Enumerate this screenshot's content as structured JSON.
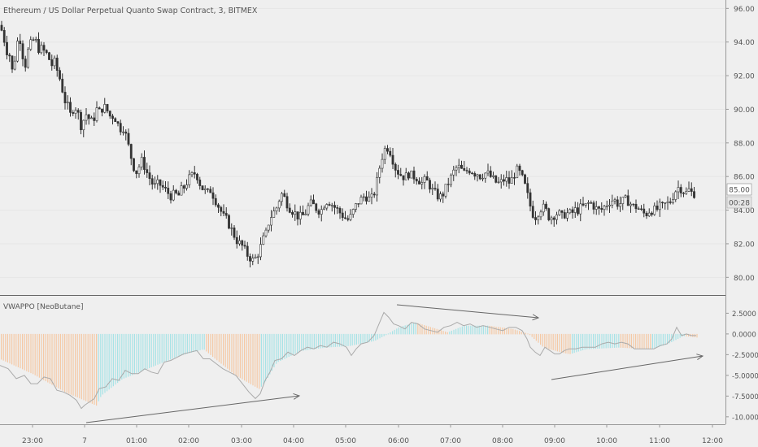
{
  "chart_data": [
    {
      "type": "candlestick",
      "title": "Ethereum / US Dollar Perpetual Quanto Swap Contract, 3, BITMEX",
      "y_ticks": [
        "80.00",
        "82.00",
        "84.00",
        "86.00",
        "88.00",
        "90.00",
        "92.00",
        "94.00",
        "96.00"
      ],
      "ylim": [
        79,
        96.5
      ],
      "last_price": "85.00",
      "countdown": "00:28",
      "x_ticks": [
        "23:00",
        "7",
        "01:00",
        "02:00",
        "03:00",
        "04:00",
        "05:00",
        "06:00",
        "07:00",
        "08:00",
        "09:00",
        "10:00",
        "11:00",
        "12:00"
      ],
      "price_path": [
        [
          0,
          95.0
        ],
        [
          4,
          94.4
        ],
        [
          8,
          93.5
        ],
        [
          12,
          93.2
        ],
        [
          16,
          92.0
        ],
        [
          20,
          93.8
        ],
        [
          24,
          94.4
        ],
        [
          27,
          93.4
        ],
        [
          31,
          92.6
        ],
        [
          35,
          93.6
        ],
        [
          39,
          94.0
        ],
        [
          43,
          94.2
        ],
        [
          47,
          93.6
        ],
        [
          51,
          93.6
        ],
        [
          55,
          93.4
        ],
        [
          59,
          93.2
        ],
        [
          63,
          92.6
        ],
        [
          67,
          92.8
        ],
        [
          71,
          92.2
        ],
        [
          75,
          91.6
        ],
        [
          79,
          90.6
        ],
        [
          83,
          90.2
        ],
        [
          87,
          89.6
        ],
        [
          91,
          90.2
        ],
        [
          95,
          90.0
        ],
        [
          99,
          89.0
        ],
        [
          103,
          89.4
        ],
        [
          107,
          89.8
        ],
        [
          111,
          89.2
        ],
        [
          115,
          89.4
        ],
        [
          119,
          90.0
        ],
        [
          123,
          89.8
        ],
        [
          127,
          90.2
        ],
        [
          131,
          90.0
        ],
        [
          135,
          89.6
        ],
        [
          139,
          89.6
        ],
        [
          143,
          89.4
        ],
        [
          147,
          88.8
        ],
        [
          151,
          89.0
        ],
        [
          155,
          88.4
        ],
        [
          159,
          87.6
        ],
        [
          163,
          86.8
        ],
        [
          167,
          86.2
        ],
        [
          171,
          86.6
        ],
        [
          175,
          87.0
        ],
        [
          179,
          86.4
        ],
        [
          183,
          86.0
        ],
        [
          187,
          85.6
        ],
        [
          191,
          85.4
        ],
        [
          195,
          85.6
        ],
        [
          199,
          85.4
        ],
        [
          203,
          85.2
        ],
        [
          207,
          85.0
        ],
        [
          211,
          84.8
        ],
        [
          215,
          85.0
        ],
        [
          219,
          84.8
        ],
        [
          223,
          85.2
        ],
        [
          227,
          85.4
        ],
        [
          231,
          85.8
        ],
        [
          235,
          86.0
        ],
        [
          239,
          86.2
        ],
        [
          243,
          86.0
        ],
        [
          247,
          85.4
        ],
        [
          251,
          85.2
        ],
        [
          255,
          85.0
        ],
        [
          259,
          85.2
        ],
        [
          263,
          84.8
        ],
        [
          267,
          84.4
        ],
        [
          271,
          84.0
        ],
        [
          275,
          83.6
        ],
        [
          279,
          83.4
        ],
        [
          283,
          83.0
        ],
        [
          287,
          82.6
        ],
        [
          291,
          82.2
        ],
        [
          295,
          82.0
        ],
        [
          299,
          81.8
        ],
        [
          303,
          81.4
        ],
        [
          307,
          81.2
        ],
        [
          311,
          81.0
        ],
        [
          315,
          81.2
        ],
        [
          319,
          81.6
        ],
        [
          323,
          82.2
        ],
        [
          327,
          82.6
        ],
        [
          331,
          83.4
        ],
        [
          335,
          83.8
        ],
        [
          339,
          84.0
        ],
        [
          343,
          84.6
        ],
        [
          347,
          85.0
        ],
        [
          351,
          84.6
        ],
        [
          355,
          84.2
        ],
        [
          359,
          84.0
        ],
        [
          363,
          83.8
        ],
        [
          367,
          83.6
        ],
        [
          371,
          83.6
        ],
        [
          375,
          83.8
        ],
        [
          379,
          84.2
        ],
        [
          383,
          84.4
        ],
        [
          387,
          84.2
        ],
        [
          391,
          84.0
        ],
        [
          395,
          84.0
        ],
        [
          399,
          84.4
        ],
        [
          403,
          84.6
        ],
        [
          407,
          84.4
        ],
        [
          411,
          84.2
        ],
        [
          415,
          84.0
        ],
        [
          419,
          83.8
        ],
        [
          423,
          83.6
        ],
        [
          427,
          83.4
        ],
        [
          431,
          83.6
        ],
        [
          435,
          84.0
        ],
        [
          439,
          84.4
        ],
        [
          443,
          84.6
        ],
        [
          447,
          84.8
        ],
        [
          451,
          84.8
        ],
        [
          455,
          84.6
        ],
        [
          459,
          84.8
        ],
        [
          463,
          85.6
        ],
        [
          467,
          86.6
        ],
        [
          471,
          87.4
        ],
        [
          475,
          87.8
        ],
        [
          479,
          87.6
        ],
        [
          483,
          87.0
        ],
        [
          487,
          86.4
        ],
        [
          491,
          86.2
        ],
        [
          495,
          86.0
        ],
        [
          499,
          86.0
        ],
        [
          503,
          86.2
        ],
        [
          507,
          86.0
        ],
        [
          511,
          86.0
        ],
        [
          515,
          85.8
        ],
        [
          519,
          85.6
        ],
        [
          523,
          85.8
        ],
        [
          527,
          85.6
        ],
        [
          531,
          85.2
        ],
        [
          535,
          85.0
        ],
        [
          539,
          84.8
        ],
        [
          543,
          84.8
        ],
        [
          547,
          85.2
        ],
        [
          551,
          85.6
        ],
        [
          555,
          86.0
        ],
        [
          559,
          86.4
        ],
        [
          563,
          86.6
        ],
        [
          567,
          86.4
        ],
        [
          571,
          86.2
        ],
        [
          575,
          86.4
        ],
        [
          579,
          86.4
        ],
        [
          583,
          86.2
        ],
        [
          587,
          86.2
        ],
        [
          591,
          86.0
        ],
        [
          595,
          86.2
        ],
        [
          599,
          86.2
        ],
        [
          603,
          86.0
        ],
        [
          607,
          85.8
        ],
        [
          611,
          85.6
        ],
        [
          615,
          85.6
        ],
        [
          619,
          85.8
        ],
        [
          623,
          85.8
        ],
        [
          627,
          85.6
        ],
        [
          631,
          86.0
        ],
        [
          635,
          86.4
        ],
        [
          639,
          86.2
        ],
        [
          643,
          85.8
        ],
        [
          647,
          85.2
        ],
        [
          651,
          84.4
        ],
        [
          655,
          83.8
        ],
        [
          659,
          83.6
        ],
        [
          663,
          84.0
        ],
        [
          667,
          84.2
        ],
        [
          671,
          84.0
        ],
        [
          675,
          83.6
        ],
        [
          679,
          83.6
        ],
        [
          683,
          83.8
        ],
        [
          687,
          83.8
        ],
        [
          691,
          83.6
        ],
        [
          695,
          83.8
        ],
        [
          699,
          83.8
        ],
        [
          703,
          83.8
        ],
        [
          707,
          84.0
        ],
        [
          711,
          84.0
        ],
        [
          715,
          84.2
        ],
        [
          719,
          84.2
        ],
        [
          723,
          84.4
        ],
        [
          727,
          84.4
        ],
        [
          731,
          84.2
        ],
        [
          735,
          84.0
        ],
        [
          739,
          84.0
        ],
        [
          743,
          84.2
        ],
        [
          747,
          84.4
        ],
        [
          751,
          84.6
        ],
        [
          755,
          84.6
        ],
        [
          759,
          84.4
        ],
        [
          763,
          84.4
        ],
        [
          767,
          84.6
        ],
        [
          771,
          84.6
        ],
        [
          775,
          84.4
        ],
        [
          779,
          84.2
        ],
        [
          783,
          84.2
        ],
        [
          787,
          84.0
        ],
        [
          791,
          83.8
        ],
        [
          795,
          83.8
        ],
        [
          799,
          84.0
        ],
        [
          803,
          84.0
        ],
        [
          807,
          84.0
        ],
        [
          811,
          84.2
        ],
        [
          815,
          84.2
        ],
        [
          819,
          84.4
        ],
        [
          823,
          84.4
        ],
        [
          827,
          84.8
        ],
        [
          831,
          85.2
        ],
        [
          835,
          85.4
        ],
        [
          839,
          85.2
        ],
        [
          843,
          85.0
        ],
        [
          847,
          85.2
        ],
        [
          851,
          85.0
        ],
        [
          855,
          85.0
        ]
      ]
    },
    {
      "type": "histogram",
      "title": "VWAPPO [NeoButane]",
      "y_ticks": [
        "2.5000",
        "0.0000",
        "-2.5000",
        "-5.0000",
        "-7.5000",
        "-10.0000"
      ],
      "ylim": [
        -10.8,
        4.5
      ],
      "colors": {
        "negative_falling": "#f5c9a5",
        "negative_rising": "#a8e3e6",
        "positive": "#f5c9a5"
      },
      "oscillator_path": [
        [
          0,
          -3.8
        ],
        [
          10,
          -4.2
        ],
        [
          20,
          -5.4
        ],
        [
          30,
          -5.0
        ],
        [
          38,
          -6.0
        ],
        [
          46,
          -6.0
        ],
        [
          54,
          -5.2
        ],
        [
          62,
          -5.4
        ],
        [
          70,
          -6.8
        ],
        [
          78,
          -7.0
        ],
        [
          86,
          -7.4
        ],
        [
          94,
          -8.0
        ],
        [
          100,
          -9.0
        ],
        [
          104,
          -8.6
        ],
        [
          110,
          -8.2
        ],
        [
          116,
          -7.8
        ],
        [
          122,
          -6.6
        ],
        [
          130,
          -6.4
        ],
        [
          138,
          -5.4
        ],
        [
          146,
          -5.6
        ],
        [
          154,
          -4.4
        ],
        [
          162,
          -4.8
        ],
        [
          170,
          -4.8
        ],
        [
          178,
          -4.2
        ],
        [
          186,
          -4.6
        ],
        [
          194,
          -4.8
        ],
        [
          202,
          -3.4
        ],
        [
          210,
          -3.2
        ],
        [
          218,
          -2.8
        ],
        [
          226,
          -2.4
        ],
        [
          234,
          -2.2
        ],
        [
          242,
          -2.0
        ],
        [
          250,
          -3.0
        ],
        [
          258,
          -3.0
        ],
        [
          266,
          -3.6
        ],
        [
          274,
          -4.2
        ],
        [
          282,
          -4.6
        ],
        [
          290,
          -5.0
        ],
        [
          298,
          -6.0
        ],
        [
          306,
          -7.0
        ],
        [
          314,
          -7.8
        ],
        [
          320,
          -7.2
        ],
        [
          326,
          -5.6
        ],
        [
          332,
          -4.6
        ],
        [
          338,
          -3.2
        ],
        [
          346,
          -3.0
        ],
        [
          354,
          -2.2
        ],
        [
          362,
          -2.6
        ],
        [
          370,
          -2.0
        ],
        [
          378,
          -1.6
        ],
        [
          386,
          -1.8
        ],
        [
          394,
          -1.4
        ],
        [
          402,
          -1.6
        ],
        [
          410,
          -1.0
        ],
        [
          418,
          -1.2
        ],
        [
          426,
          -1.6
        ],
        [
          432,
          -2.6
        ],
        [
          438,
          -1.8
        ],
        [
          444,
          -1.2
        ],
        [
          452,
          -1.0
        ],
        [
          460,
          -0.2
        ],
        [
          466,
          1.2
        ],
        [
          472,
          2.6
        ],
        [
          478,
          2.0
        ],
        [
          484,
          1.2
        ],
        [
          490,
          1.0
        ],
        [
          498,
          0.6
        ],
        [
          506,
          1.4
        ],
        [
          514,
          1.2
        ],
        [
          522,
          0.6
        ],
        [
          530,
          0.4
        ],
        [
          538,
          0.2
        ],
        [
          546,
          0.8
        ],
        [
          554,
          1.0
        ],
        [
          562,
          1.4
        ],
        [
          570,
          1.0
        ],
        [
          578,
          1.2
        ],
        [
          586,
          0.8
        ],
        [
          594,
          1.0
        ],
        [
          602,
          0.8
        ],
        [
          610,
          0.6
        ],
        [
          618,
          0.4
        ],
        [
          626,
          0.8
        ],
        [
          634,
          0.8
        ],
        [
          642,
          0.4
        ],
        [
          648,
          -0.6
        ],
        [
          652,
          -1.6
        ],
        [
          658,
          -2.2
        ],
        [
          664,
          -2.6
        ],
        [
          670,
          -1.6
        ],
        [
          676,
          -2.0
        ],
        [
          682,
          -2.4
        ],
        [
          688,
          -2.4
        ],
        [
          694,
          -2.0
        ],
        [
          700,
          -1.8
        ],
        [
          708,
          -1.8
        ],
        [
          716,
          -1.6
        ],
        [
          724,
          -1.6
        ],
        [
          732,
          -1.6
        ],
        [
          740,
          -1.2
        ],
        [
          748,
          -1.0
        ],
        [
          756,
          -1.2
        ],
        [
          764,
          -1.0
        ],
        [
          772,
          -1.2
        ],
        [
          780,
          -1.8
        ],
        [
          788,
          -1.8
        ],
        [
          796,
          -1.8
        ],
        [
          804,
          -1.8
        ],
        [
          812,
          -1.4
        ],
        [
          820,
          -1.2
        ],
        [
          826,
          -0.6
        ],
        [
          832,
          0.8
        ],
        [
          838,
          -0.2
        ],
        [
          844,
          0.0
        ],
        [
          850,
          -0.2
        ],
        [
          856,
          -0.2
        ]
      ],
      "histogram_path": [
        [
          0,
          -3.0
        ],
        [
          40,
          -4.8
        ],
        [
          80,
          -7.0
        ],
        [
          118,
          -8.6
        ],
        [
          124,
          -7.4
        ],
        [
          150,
          -5.4
        ],
        [
          180,
          -4.2
        ],
        [
          220,
          -2.6
        ],
        [
          250,
          -1.8
        ],
        [
          262,
          -2.8
        ],
        [
          290,
          -5.0
        ],
        [
          318,
          -6.6
        ],
        [
          324,
          -6.0
        ],
        [
          340,
          -3.4
        ],
        [
          370,
          -2.0
        ],
        [
          400,
          -1.6
        ],
        [
          430,
          -1.4
        ],
        [
          460,
          -0.8
        ],
        [
          476,
          0.0
        ],
        [
          490,
          0.8
        ],
        [
          510,
          1.4
        ],
        [
          530,
          0.8
        ],
        [
          550,
          0.2
        ],
        [
          570,
          1.0
        ],
        [
          600,
          1.0
        ],
        [
          630,
          0.6
        ],
        [
          650,
          0.0
        ],
        [
          668,
          -1.6
        ],
        [
          690,
          -2.2
        ],
        [
          700,
          -2.4
        ],
        [
          720,
          -1.8
        ],
        [
          760,
          -1.6
        ],
        [
          800,
          -1.8
        ],
        [
          820,
          -1.2
        ],
        [
          840,
          -0.2
        ],
        [
          858,
          -0.4
        ]
      ]
    }
  ]
}
